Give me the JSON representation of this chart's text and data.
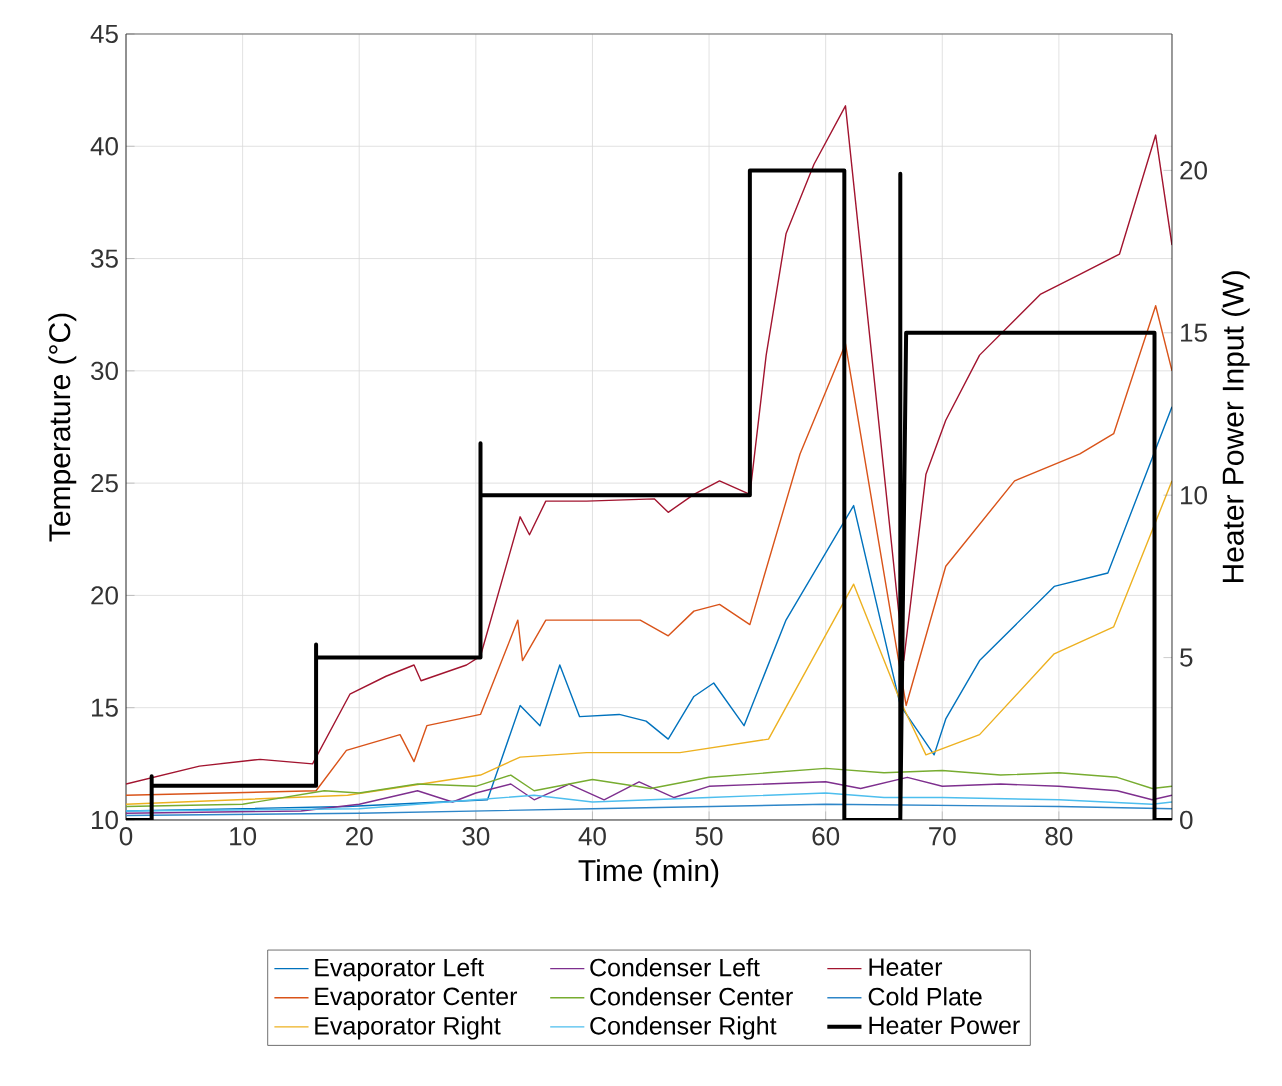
{
  "chart_data": {
    "type": "line",
    "xlabel": "Time (min)",
    "ylabel": "Temperature (°C)",
    "y2label": "Heater Power Input (W)",
    "xlim": [
      0,
      89.7
    ],
    "xticks": [
      0,
      10,
      20,
      30,
      40,
      50,
      60,
      70,
      80
    ],
    "ylim": [
      10,
      45
    ],
    "yticks": [
      10,
      15,
      20,
      25,
      30,
      35,
      40,
      45
    ],
    "y2lim": [
      0,
      24.2
    ],
    "y2ticks": [
      0,
      5,
      10,
      15,
      20
    ],
    "grid": true,
    "legend": "bottom",
    "line_style": "solid",
    "series": [
      {
        "name": "Evaporator Left",
        "color": "#0072bd",
        "x": [
          0,
          19,
          31,
          33.8,
          35.5,
          37.2,
          38.9,
          42.3,
          44.6,
          46.5,
          48.7,
          50.4,
          53,
          56.6,
          62.4,
          66.4,
          69.3,
          70.3,
          73.2,
          79.6,
          84.2,
          89.7
        ],
        "values": [
          10.4,
          10.6,
          10.9,
          15.1,
          14.2,
          16.9,
          14.6,
          14.7,
          14.4,
          13.6,
          15.5,
          16.1,
          14.2,
          18.9,
          24,
          15.1,
          12.9,
          14.5,
          17.1,
          20.4,
          21,
          28.4
        ]
      },
      {
        "name": "Evaporator Center",
        "color": "#d95319",
        "x": [
          0,
          16.3,
          18.9,
          23.5,
          24.7,
          25.8,
          30.4,
          33.6,
          34,
          36,
          44.1,
          46.5,
          48.7,
          50.9,
          53.5,
          57.8,
          61.7,
          66.9,
          70.3,
          76.2,
          81.8,
          84.7,
          88.3,
          89.7
        ],
        "values": [
          11.1,
          11.3,
          13.1,
          13.8,
          12.6,
          14.2,
          14.7,
          18.9,
          17.1,
          18.9,
          18.9,
          18.2,
          19.3,
          19.6,
          18.7,
          26.3,
          31.2,
          15.1,
          21.3,
          25.1,
          26.3,
          27.2,
          32.9,
          30
        ]
      },
      {
        "name": "Evaporator Right",
        "color": "#edb120",
        "x": [
          0,
          19,
          30.4,
          33.8,
          39.5,
          47.5,
          55.1,
          62.4,
          66.4,
          68.6,
          73.2,
          79.6,
          84.7,
          89.7
        ],
        "values": [
          10.7,
          11.1,
          12,
          12.8,
          13,
          13,
          13.6,
          20.5,
          15.3,
          12.9,
          13.8,
          17.4,
          18.6,
          25.1
        ]
      },
      {
        "name": "Condenser Left",
        "color": "#7e2f8e",
        "x": [
          0,
          15,
          20,
          25,
          28,
          30,
          33,
          35,
          38,
          41,
          44,
          47,
          50,
          55,
          60,
          63,
          67,
          70,
          75,
          80,
          85,
          88,
          89.7
        ],
        "values": [
          10.3,
          10.4,
          10.7,
          11.3,
          10.8,
          11.2,
          11.6,
          10.9,
          11.6,
          10.9,
          11.7,
          11,
          11.5,
          11.6,
          11.7,
          11.4,
          11.9,
          11.5,
          11.6,
          11.5,
          11.3,
          10.9,
          11.1
        ]
      },
      {
        "name": "Condenser Center",
        "color": "#77ac30",
        "x": [
          0,
          10,
          17,
          20,
          25,
          30,
          33,
          35,
          40,
          45,
          50,
          55,
          60,
          65,
          70,
          75,
          80,
          85,
          88,
          89.7
        ],
        "values": [
          10.6,
          10.7,
          11.3,
          11.2,
          11.6,
          11.5,
          12,
          11.3,
          11.8,
          11.4,
          11.9,
          12.1,
          12.3,
          12.1,
          12.2,
          12,
          12.1,
          11.9,
          11.4,
          11.5
        ]
      },
      {
        "name": "Condenser Right",
        "color": "#4dbeee",
        "x": [
          0,
          20,
          30,
          35,
          40,
          50,
          60,
          65,
          70,
          80,
          88,
          89.7
        ],
        "values": [
          10.4,
          10.5,
          10.9,
          11.1,
          10.8,
          11,
          11.2,
          11,
          11,
          10.9,
          10.7,
          10.8
        ]
      },
      {
        "name": "Heater",
        "color": "#a2142f",
        "x": [
          0,
          6.3,
          11.5,
          16,
          19.2,
          22.3,
          24.7,
          25.3,
          29.2,
          30.4,
          33.8,
          34.6,
          36,
          39.5,
          45.3,
          46.5,
          48.7,
          50.9,
          53.5,
          54.9,
          56.6,
          59,
          61.7,
          66.7,
          68.6,
          70.3,
          73.2,
          78.4,
          81.8,
          85.2,
          88.3,
          89.7
        ],
        "values": [
          11.6,
          12.4,
          12.7,
          12.5,
          15.6,
          16.4,
          16.9,
          16.2,
          16.9,
          17.3,
          23.5,
          22.7,
          24.2,
          24.2,
          24.3,
          23.7,
          24.5,
          25.1,
          24.5,
          30.7,
          36.1,
          39.2,
          41.8,
          17.1,
          25.4,
          27.8,
          30.7,
          33.4,
          34.3,
          35.2,
          40.5,
          35.6
        ]
      },
      {
        "name": "Cold Plate",
        "color": "#2e86c8",
        "x": [
          0,
          20,
          40,
          60,
          80,
          89.7
        ],
        "values": [
          10.2,
          10.3,
          10.5,
          10.7,
          10.6,
          10.5
        ]
      },
      {
        "name": "Heater Power",
        "color": "#000000",
        "axis": "y2",
        "x": [
          0,
          2.2,
          2.2,
          2.2,
          16.3,
          16.3,
          16.3,
          30.4,
          30.4,
          30.4,
          53.5,
          53.5,
          61.6,
          61.6,
          66.4,
          66.4,
          66.4,
          66.9,
          88.2,
          88.2,
          89.7
        ],
        "values": [
          0,
          0,
          1.35,
          1.05,
          1.05,
          5.4,
          5,
          5,
          11.6,
          10,
          10,
          20,
          20,
          0,
          0,
          19.9,
          0,
          15,
          15,
          0,
          0
        ]
      }
    ]
  }
}
